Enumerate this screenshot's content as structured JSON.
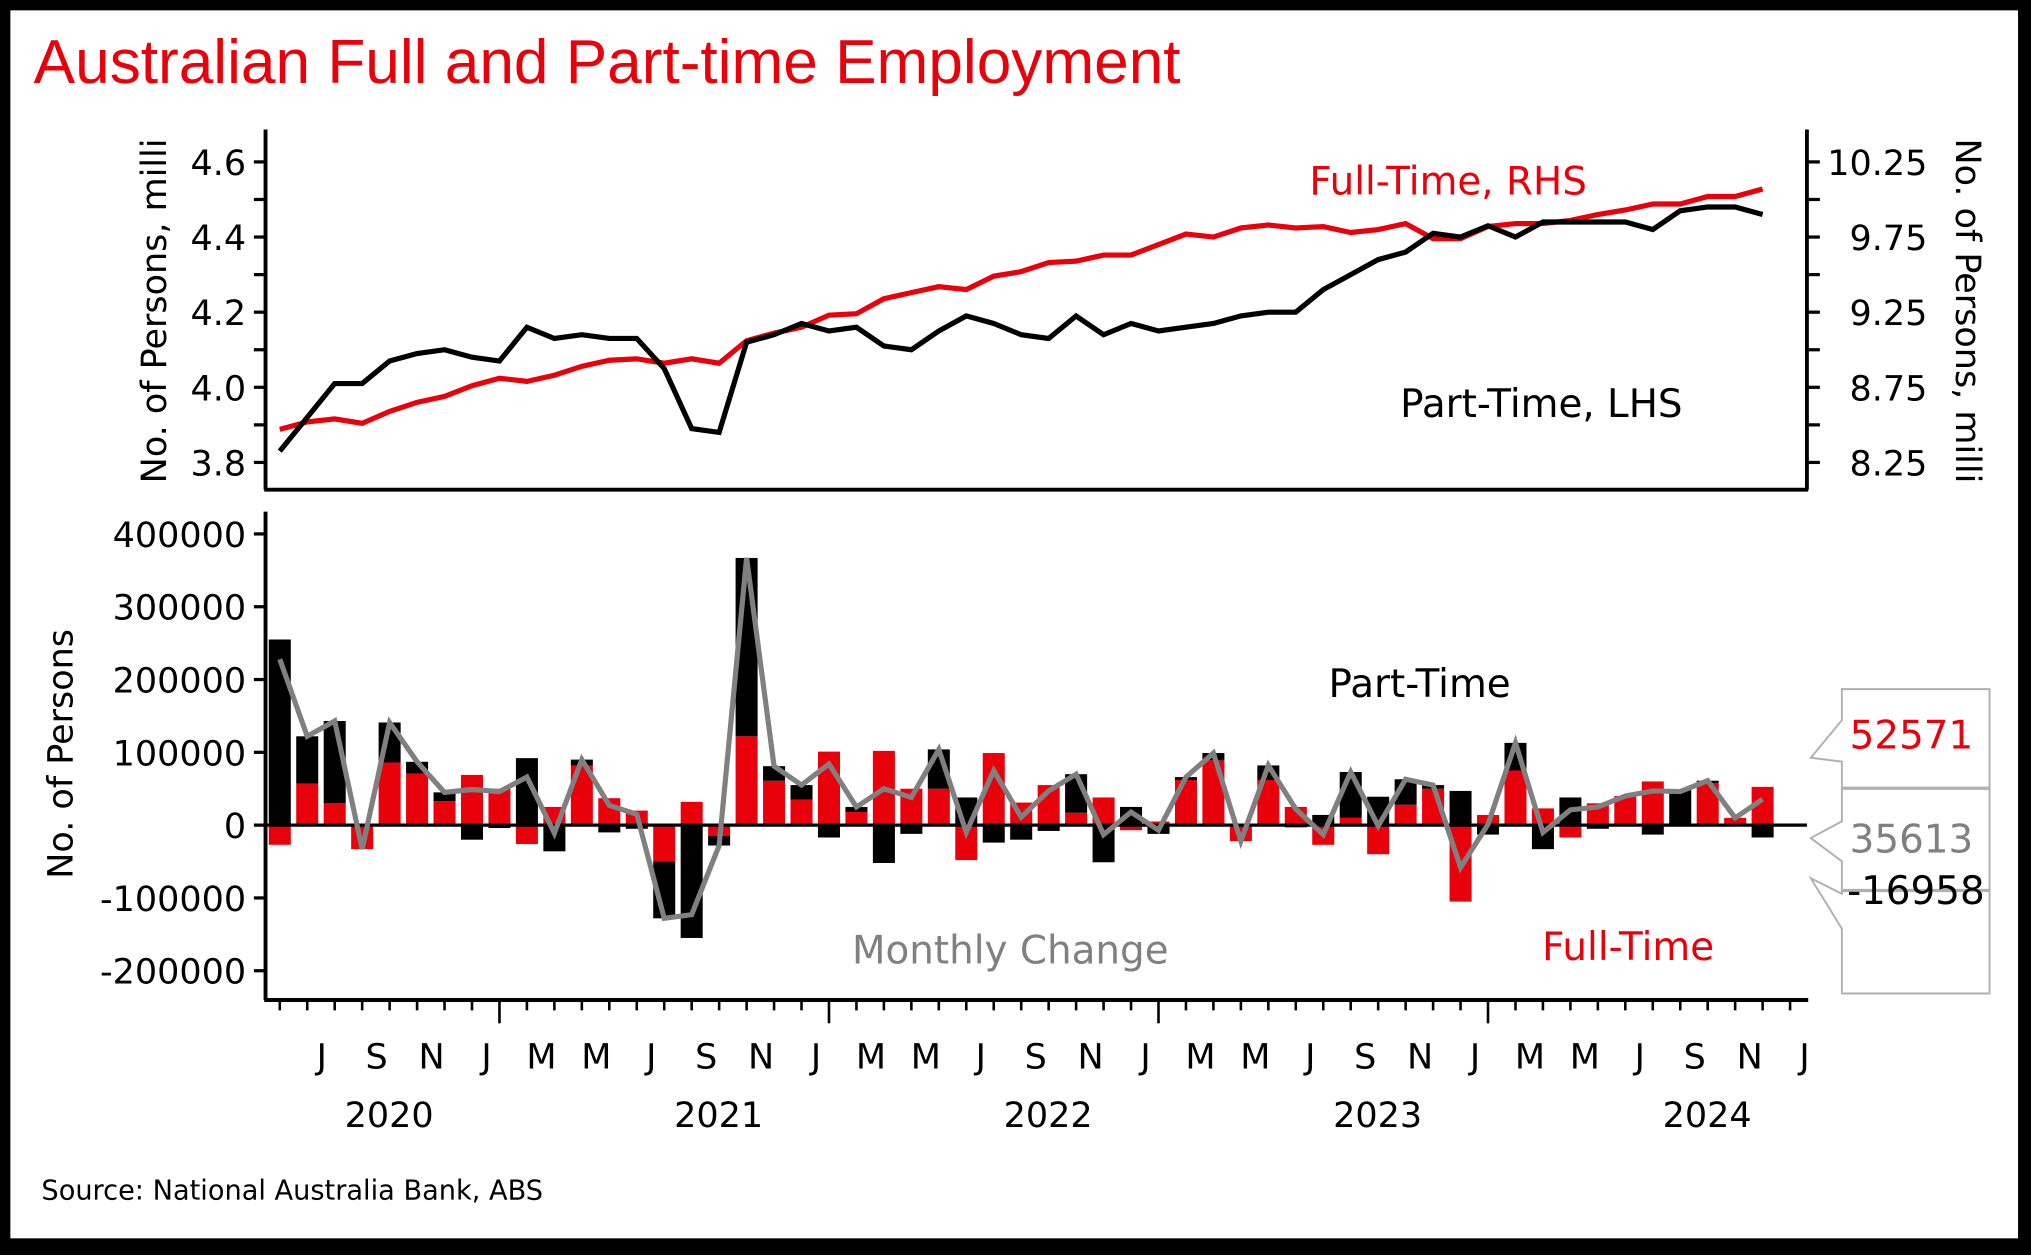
{
  "title": "Australian Full and Part-time Employment",
  "source": "Source: National Australia Bank, ABS",
  "colors": {
    "full_time": "#e8000b",
    "part_time": "#000000",
    "monthly_change": "#808080",
    "title": "#e8000b"
  },
  "chart_data": [
    {
      "type": "line",
      "title": "Australian Full and Part-time Employment",
      "ylabel_left": "No. of Persons, milli",
      "ylabel_right": "No. of Persons, milli",
      "ylim_left": [
        3.75,
        4.7
      ],
      "yticks_left": [
        "3.8",
        "4.0",
        "4.2",
        "4.4",
        "4.6"
      ],
      "ylim_right": [
        8.05,
        10.5
      ],
      "yticks_right": [
        "8.25",
        "8.75",
        "9.25",
        "9.75",
        "10.25"
      ],
      "annotations": {
        "full_time": "Full-Time, RHS",
        "part_time": "Part-Time, LHS"
      },
      "x": [
        "2020-05",
        "2020-06",
        "2020-07",
        "2020-08",
        "2020-09",
        "2020-10",
        "2020-11",
        "2020-12",
        "2021-01",
        "2021-02",
        "2021-03",
        "2021-04",
        "2021-05",
        "2021-06",
        "2021-07",
        "2021-08",
        "2021-09",
        "2021-10",
        "2021-11",
        "2021-12",
        "2022-01",
        "2022-02",
        "2022-03",
        "2022-04",
        "2022-05",
        "2022-06",
        "2022-07",
        "2022-08",
        "2022-09",
        "2022-10",
        "2022-11",
        "2022-12",
        "2023-01",
        "2023-02",
        "2023-03",
        "2023-04",
        "2023-05",
        "2023-06",
        "2023-07",
        "2023-08",
        "2023-09",
        "2023-10",
        "2023-11",
        "2023-12",
        "2024-01",
        "2024-02",
        "2024-03",
        "2024-04",
        "2024-05",
        "2024-06",
        "2024-07",
        "2024-08",
        "2024-09",
        "2024-10",
        "2024-11"
      ],
      "series": [
        {
          "name": "Part-Time, LHS",
          "axis": "left",
          "values": [
            3.83,
            3.92,
            4.01,
            4.01,
            4.07,
            4.09,
            4.1,
            4.08,
            4.07,
            4.16,
            4.13,
            4.14,
            4.13,
            4.13,
            4.05,
            3.89,
            3.88,
            4.12,
            4.14,
            4.17,
            4.15,
            4.16,
            4.11,
            4.1,
            4.15,
            4.19,
            4.17,
            4.14,
            4.13,
            4.19,
            4.14,
            4.17,
            4.15,
            4.16,
            4.17,
            4.19,
            4.2,
            4.2,
            4.26,
            4.3,
            4.34,
            4.36,
            4.41,
            4.4,
            4.43,
            4.4,
            4.44,
            4.44,
            4.44,
            4.44,
            4.42,
            4.47,
            4.48,
            4.48,
            4.46
          ]
        },
        {
          "name": "Full-Time, RHS",
          "axis": "right",
          "values": [
            8.47,
            8.52,
            8.54,
            8.51,
            8.59,
            8.65,
            8.69,
            8.76,
            8.81,
            8.79,
            8.83,
            8.89,
            8.93,
            8.94,
            8.91,
            8.94,
            8.91,
            9.06,
            9.11,
            9.15,
            9.23,
            9.24,
            9.34,
            9.38,
            9.42,
            9.4,
            9.49,
            9.52,
            9.58,
            9.59,
            9.63,
            9.63,
            9.7,
            9.77,
            9.75,
            9.81,
            9.83,
            9.81,
            9.82,
            9.78,
            9.8,
            9.84,
            9.74,
            9.74,
            9.82,
            9.84,
            9.84,
            9.86,
            9.9,
            9.93,
            9.97,
            9.97,
            10.02,
            10.02,
            10.07
          ]
        }
      ]
    },
    {
      "type": "bar",
      "ylabel": "No. of Persons",
      "ylim": [
        -230000,
        440000
      ],
      "yticks": [
        "-200000",
        "-100000",
        "0",
        "100000",
        "200000",
        "300000",
        "400000"
      ],
      "annotations": {
        "part_time": "Part-Time",
        "full_time": "Full-Time",
        "monthly_change": "Monthly Change"
      },
      "latest_labels": {
        "full_time": "52571",
        "monthly_change": "35613",
        "part_time": "-16958"
      },
      "x_month_ticks": [
        "J",
        "S",
        "N",
        "J",
        "M",
        "M",
        "J",
        "S",
        "N",
        "J",
        "M",
        "M",
        "J",
        "S",
        "N",
        "J",
        "M",
        "M",
        "J",
        "S",
        "N",
        "J",
        "M",
        "M",
        "J",
        "S",
        "N",
        "J"
      ],
      "x_year_labels": [
        "2020",
        "2021",
        "2022",
        "2023",
        "2024"
      ],
      "series": [
        {
          "name": "Full-Time",
          "values": [
            -27000,
            57000,
            30000,
            -33000,
            86000,
            71000,
            33000,
            69000,
            50000,
            -26000,
            25000,
            82000,
            37000,
            20000,
            -50000,
            32000,
            -15000,
            122000,
            61000,
            35000,
            101000,
            18000,
            102000,
            50000,
            50000,
            -48000,
            99000,
            31000,
            55000,
            17000,
            38000,
            -7000,
            5000,
            62000,
            89000,
            -22000,
            62000,
            25000,
            -27000,
            10000,
            -40000,
            28000,
            50000,
            -105000,
            14000,
            75000,
            23000,
            -17000,
            30000,
            40000,
            60000,
            -2000,
            58000,
            10000,
            52571
          ]
        },
        {
          "name": "Part-Time",
          "values": [
            255000,
            65000,
            113000,
            0,
            55000,
            16000,
            12000,
            -20000,
            -4000,
            92000,
            -36000,
            8000,
            -10000,
            -5000,
            -78000,
            -155000,
            -13000,
            245000,
            20000,
            20000,
            -17000,
            7000,
            -52000,
            -12000,
            54000,
            38000,
            -24000,
            -20000,
            -8000,
            53000,
            -51000,
            25000,
            -12000,
            4000,
            10000,
            0,
            20000,
            -3000,
            14000,
            63000,
            39000,
            35000,
            5000,
            47000,
            -13000,
            38000,
            -33000,
            38000,
            -5000,
            0,
            -13000,
            48000,
            3000,
            0,
            -16958
          ]
        }
      ]
    }
  ]
}
